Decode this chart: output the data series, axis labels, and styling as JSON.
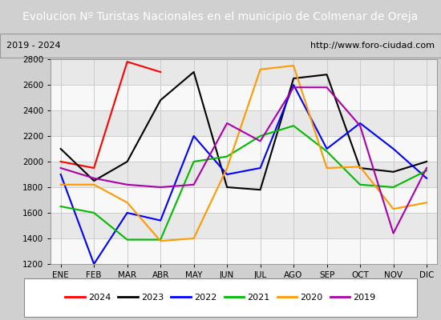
{
  "title": "Evolucion Nº Turistas Nacionales en el municipio de Colmenar de Oreja",
  "subtitle_left": "2019 - 2024",
  "subtitle_right": "http://www.foro-ciudad.com",
  "ylim": [
    1200,
    2800
  ],
  "yticks": [
    1200,
    1400,
    1600,
    1800,
    2000,
    2200,
    2400,
    2600,
    2800
  ],
  "months": [
    "ENE",
    "FEB",
    "MAR",
    "ABR",
    "MAY",
    "JUN",
    "JUL",
    "AGO",
    "SEP",
    "OCT",
    "NOV",
    "DIC"
  ],
  "series": {
    "2024": {
      "color": "#ff0000",
      "data": [
        2000,
        1950,
        2780,
        2700,
        null,
        null,
        null,
        null,
        null,
        null,
        null,
        null
      ]
    },
    "2023": {
      "color": "#000000",
      "data": [
        2100,
        1850,
        2000,
        2480,
        2700,
        1800,
        1780,
        2650,
        2680,
        1950,
        1920,
        2000
      ]
    },
    "2022": {
      "color": "#0000ff",
      "data": [
        1900,
        1200,
        1600,
        1540,
        2200,
        1900,
        1950,
        2600,
        2100,
        2300,
        2100,
        1870
      ]
    },
    "2021": {
      "color": "#00bb00",
      "data": [
        1650,
        1600,
        1390,
        1390,
        2000,
        2040,
        2200,
        2280,
        2080,
        1820,
        1800,
        1930
      ]
    },
    "2020": {
      "color": "#ff9900",
      "data": [
        1820,
        1820,
        1680,
        1380,
        1400,
        1950,
        2720,
        2750,
        1950,
        1960,
        1630,
        1680
      ]
    },
    "2019": {
      "color": "#aa00aa",
      "data": [
        1950,
        1870,
        1820,
        1800,
        1820,
        2300,
        2160,
        2580,
        2580,
        2280,
        1440,
        1950
      ]
    }
  },
  "title_bg_color": "#4472c4",
  "title_text_color": "#ffffff",
  "title_fontsize": 10,
  "subtitle_fontsize": 8,
  "tick_fontsize": 7.5,
  "legend_fontsize": 8,
  "plot_bg_color": "#f0f0f0",
  "grid_color": "#cccccc",
  "band_color_light": "#e8e8e8",
  "band_color_white": "#f8f8f8"
}
